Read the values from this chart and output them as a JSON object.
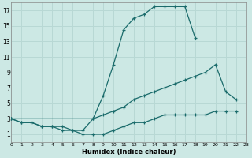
{
  "xlabel": "Humidex (Indice chaleur)",
  "bg_color": "#cce8e4",
  "grid_color": "#b8d8d4",
  "line_color": "#1a6b6b",
  "line1_x": [
    0,
    1,
    2,
    3,
    4,
    5,
    6,
    7,
    8,
    9,
    10,
    11,
    12,
    13,
    14,
    15,
    16,
    17,
    18,
    19,
    20,
    21,
    22
  ],
  "line1_y": [
    3,
    2.5,
    2.5,
    2,
    2,
    2,
    1.5,
    1.5,
    3,
    6,
    10,
    14.5,
    16,
    16.5,
    17.5,
    17.5,
    17.5,
    17.5,
    13.5,
    null,
    null,
    null,
    null
  ],
  "line2_x": [
    0,
    8,
    9,
    10,
    11,
    12,
    13,
    14,
    15,
    16,
    17,
    18,
    19,
    20,
    21,
    22
  ],
  "line2_y": [
    3,
    3,
    3.5,
    4,
    4.5,
    5.5,
    6,
    6.5,
    7,
    7.5,
    8,
    8.5,
    9,
    10,
    6.5,
    5.5
  ],
  "line3_x": [
    0,
    1,
    2,
    3,
    4,
    5,
    6,
    7,
    8,
    9,
    10,
    11,
    12,
    13,
    14,
    15,
    16,
    17,
    18,
    19,
    20,
    21,
    22
  ],
  "line3_y": [
    3,
    2.5,
    2.5,
    2,
    2,
    1.5,
    1.5,
    1,
    1,
    1,
    1.5,
    2,
    2.5,
    2.5,
    3,
    3.5,
    3.5,
    3.5,
    3.5,
    3.5,
    4,
    4,
    4
  ],
  "xlim": [
    0,
    23
  ],
  "ylim": [
    0,
    18
  ],
  "yticks": [
    1,
    3,
    5,
    7,
    9,
    11,
    13,
    15,
    17
  ],
  "xticks": [
    0,
    1,
    2,
    3,
    4,
    5,
    6,
    7,
    8,
    9,
    10,
    11,
    12,
    13,
    14,
    15,
    16,
    17,
    18,
    19,
    20,
    21,
    22,
    23
  ]
}
